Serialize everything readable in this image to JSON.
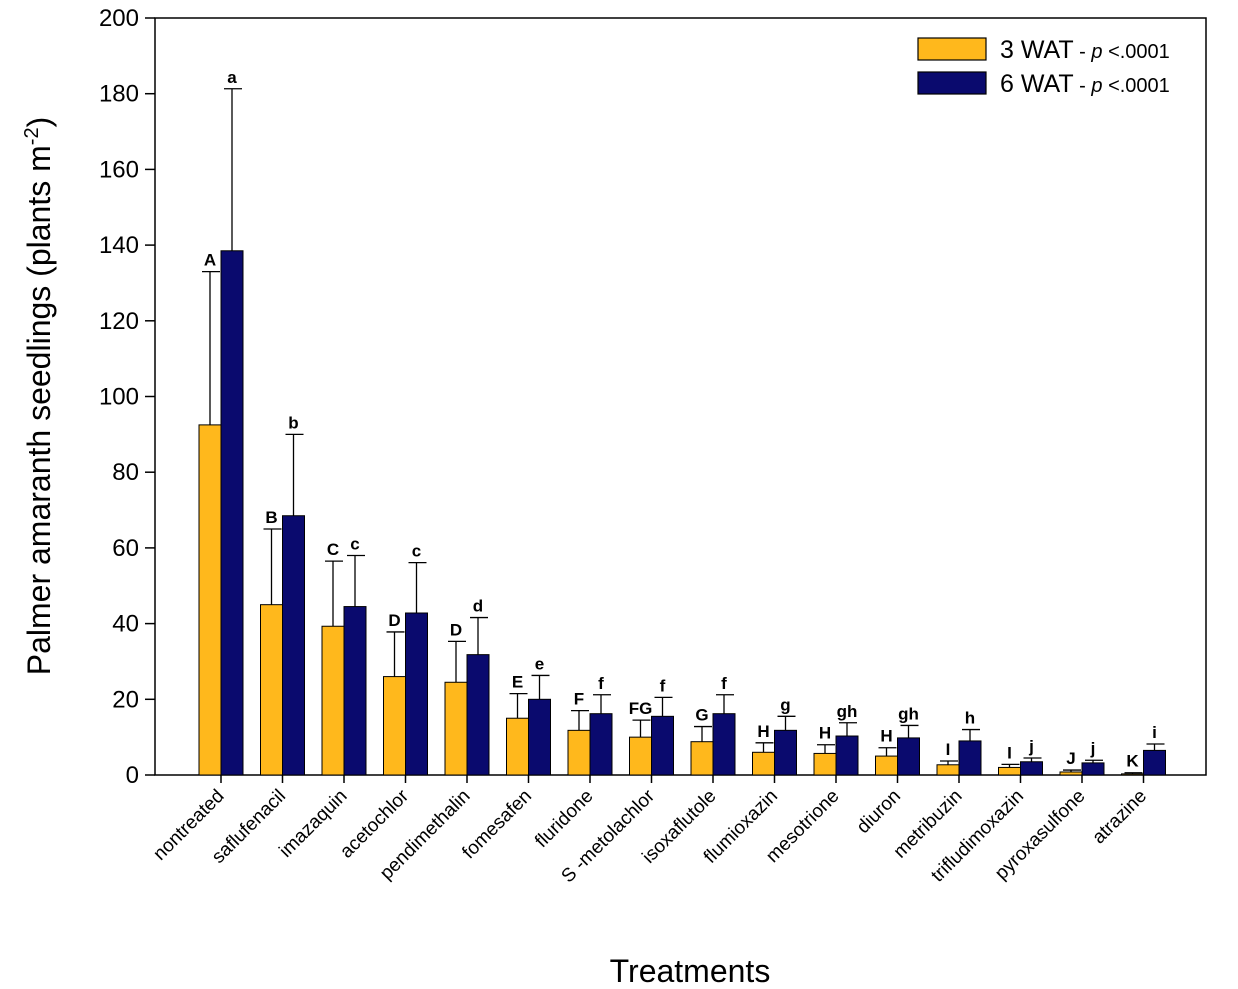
{
  "chart_data": {
    "type": "bar",
    "xlabel": "Treatments",
    "ylabel_main": "Palmer amaranth seedlings (plants m",
    "ylabel_sup": "-2",
    "ylabel_close": ")",
    "ylim": [
      0,
      200
    ],
    "yticks": [
      0,
      20,
      40,
      60,
      80,
      100,
      120,
      140,
      160,
      180,
      200
    ],
    "grid": false,
    "legend_position": "top-right",
    "categories": [
      "nontreated",
      "saflufenacil",
      "imazaquin",
      "acetochlor",
      "pendimethalin",
      "fomesafen",
      "fluridone",
      "S -metolachlor",
      "isoxaflutole",
      "flumioxazin",
      "mesotrione",
      "diuron",
      "metribuzin",
      "trifludimoxazin",
      "pyroxasulfone",
      "atrazine"
    ],
    "series": [
      {
        "name": "3 WAT",
        "legend_suffix": " - ",
        "legend_p": "p",
        "legend_value": " <.0001",
        "color": "#FFB81C",
        "values": [
          92.5,
          45,
          39.3,
          26,
          24.5,
          15,
          11.8,
          10,
          8.8,
          6,
          5.7,
          5,
          2.7,
          2,
          0.8,
          0.3
        ],
        "errors": [
          40.5,
          20,
          17.2,
          11.8,
          10.8,
          6.5,
          5.2,
          4.5,
          4,
          2.5,
          2.3,
          2.2,
          1,
          0.8,
          0.5,
          0.3
        ],
        "letters": [
          "A",
          "B",
          "C",
          "D",
          "D",
          "E",
          "F",
          "FG",
          "G",
          "H",
          "H",
          "H",
          "I",
          "I",
          "J",
          "K"
        ]
      },
      {
        "name": "6 WAT",
        "legend_suffix": " - ",
        "legend_p": "p",
        "legend_value": " <.0001",
        "color": "#0A0A6E",
        "values": [
          138.5,
          68.5,
          44.5,
          42.8,
          31.8,
          20,
          16.2,
          15.5,
          16.2,
          11.8,
          10.3,
          9.8,
          9,
          3.5,
          3.2,
          6.5
        ],
        "errors": [
          42.8,
          21.5,
          13.5,
          13.3,
          9.8,
          6.3,
          5,
          5,
          5,
          3.7,
          3.5,
          3.3,
          3,
          1,
          0.7,
          1.7
        ],
        "letters": [
          "a",
          "b",
          "c",
          "c",
          "d",
          "e",
          "f",
          "f",
          "f",
          "g",
          "gh",
          "gh",
          "h",
          "j",
          "j",
          "i"
        ]
      }
    ]
  }
}
